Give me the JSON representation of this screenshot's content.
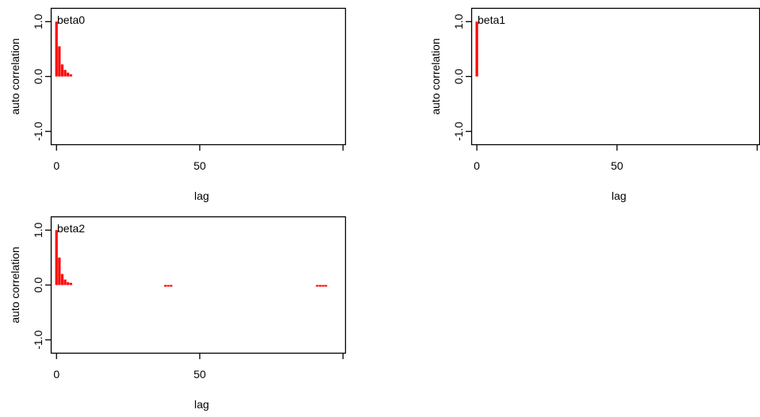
{
  "chart_data": [
    {
      "type": "bar",
      "title": "beta0",
      "xlabel": "lag",
      "ylabel": "auto correlation",
      "xlim": [
        -2,
        101
      ],
      "ylim": [
        -1.25,
        1.25
      ],
      "x_ticks": [
        0,
        50,
        100
      ],
      "x_tick_labels": [
        "0",
        "50",
        ""
      ],
      "y_ticks": [
        -1.0,
        0.0,
        1.0
      ],
      "y_tick_labels": [
        "-1.0",
        "0.0",
        "1.0"
      ],
      "grid": false,
      "colors": {
        "bars": "#ff0000",
        "axes": "#000000"
      },
      "series": [
        {
          "lags": [
            0,
            1,
            2,
            3,
            4,
            5
          ],
          "values": [
            1.0,
            0.55,
            0.22,
            0.12,
            0.07,
            0.04
          ]
        }
      ]
    },
    {
      "type": "bar",
      "title": "beta1",
      "xlabel": "lag",
      "ylabel": "auto correlation",
      "xlim": [
        -2,
        101
      ],
      "ylim": [
        -1.25,
        1.25
      ],
      "x_ticks": [
        0,
        50,
        100
      ],
      "x_tick_labels": [
        "0",
        "50",
        ""
      ],
      "y_ticks": [
        -1.0,
        0.0,
        1.0
      ],
      "y_tick_labels": [
        "-1.0",
        "0.0",
        "1.0"
      ],
      "grid": false,
      "colors": {
        "bars": "#ff0000",
        "axes": "#000000"
      },
      "series": [
        {
          "lags": [
            0
          ],
          "values": [
            1.0
          ]
        }
      ]
    },
    {
      "type": "bar",
      "title": "beta2",
      "xlabel": "lag",
      "ylabel": "auto correlation",
      "xlim": [
        -2,
        101
      ],
      "ylim": [
        -1.25,
        1.25
      ],
      "x_ticks": [
        0,
        50,
        100
      ],
      "x_tick_labels": [
        "0",
        "50",
        ""
      ],
      "y_ticks": [
        -1.0,
        0.0,
        1.0
      ],
      "y_tick_labels": [
        "-1.0",
        "0.0",
        "1.0"
      ],
      "grid": false,
      "colors": {
        "bars": "#ff0000",
        "axes": "#000000"
      },
      "series": [
        {
          "lags": [
            0,
            1,
            2,
            3,
            4,
            5,
            38,
            39,
            40,
            91,
            92,
            93,
            94
          ],
          "values": [
            1.0,
            0.5,
            0.2,
            0.1,
            0.05,
            0.04,
            -0.03,
            -0.03,
            -0.03,
            -0.03,
            -0.03,
            -0.03,
            -0.03
          ]
        }
      ]
    }
  ]
}
